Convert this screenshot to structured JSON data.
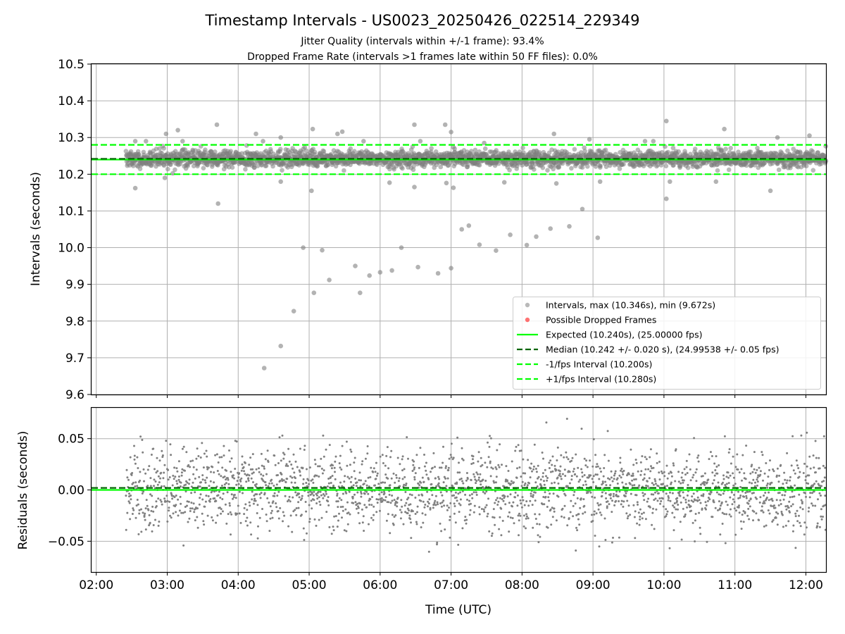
{
  "chart_data": {
    "type": "scatter",
    "title": "Timestamp Intervals - US0023_20250426_022514_229349",
    "subtitle_lines": [
      "Jitter Quality (intervals within +/-1 frame): 93.4%",
      "Dropped Frame Rate (intervals >1 frames late within 50 FF files): 0.0%"
    ],
    "xlabel": "Time (UTC)",
    "x_ticks": [
      "02:00",
      "03:00",
      "04:00",
      "05:00",
      "06:00",
      "07:00",
      "08:00",
      "09:00",
      "10:00",
      "11:00",
      "12:00"
    ],
    "xlim": [
      "01:56",
      "12:17"
    ],
    "grid": true,
    "panels": [
      {
        "name": "intervals",
        "ylabel": "Intervals (seconds)",
        "ylim": [
          9.6,
          10.5
        ],
        "y_ticks": [
          "10.5",
          "10.4",
          "10.3",
          "10.2",
          "10.1",
          "10.0",
          "9.9",
          "9.8",
          "9.7",
          "9.6"
        ],
        "legend_position": "lower right",
        "legend": [
          "Intervals, max (10.346s), min (9.672s)",
          "Possible Dropped Frames",
          "Expected (10.240s), (25.00000 fps)",
          "Median (10.242 +/- 0.020 s), (24.99538 +/- 0.05 fps)",
          "-1/fps Interval (10.200s)",
          "+1/fps Interval (10.280s)"
        ],
        "lines": {
          "expected": 10.24,
          "median": 10.242,
          "minus_one_fps": 10.2,
          "plus_one_fps": 10.28
        },
        "dense_band": {
          "x_start": "02:25",
          "x_end": "12:17",
          "center": 10.242,
          "spread": 0.02
        },
        "outliers": [
          {
            "x": "02:33",
            "y": 10.162
          },
          {
            "x": "02:33",
            "y": 10.29
          },
          {
            "x": "02:42",
            "y": 10.29
          },
          {
            "x": "02:59",
            "y": 10.31
          },
          {
            "x": "02:58",
            "y": 10.19
          },
          {
            "x": "03:09",
            "y": 10.32
          },
          {
            "x": "03:13",
            "y": 10.29
          },
          {
            "x": "03:42",
            "y": 10.335
          },
          {
            "x": "03:43",
            "y": 10.12
          },
          {
            "x": "04:15",
            "y": 10.31
          },
          {
            "x": "04:21",
            "y": 10.29
          },
          {
            "x": "04:22",
            "y": 9.672
          },
          {
            "x": "04:36",
            "y": 9.732
          },
          {
            "x": "04:36",
            "y": 10.3
          },
          {
            "x": "04:36",
            "y": 10.18
          },
          {
            "x": "04:47",
            "y": 9.827
          },
          {
            "x": "04:55",
            "y": 10.0
          },
          {
            "x": "05:03",
            "y": 10.323
          },
          {
            "x": "05:02",
            "y": 10.155
          },
          {
            "x": "05:04",
            "y": 9.877
          },
          {
            "x": "05:11",
            "y": 9.993
          },
          {
            "x": "05:17",
            "y": 9.912
          },
          {
            "x": "05:24",
            "y": 10.31
          },
          {
            "x": "05:28",
            "y": 10.316
          },
          {
            "x": "05:39",
            "y": 9.95
          },
          {
            "x": "05:43",
            "y": 9.877
          },
          {
            "x": "05:46",
            "y": 10.29
          },
          {
            "x": "05:51",
            "y": 9.924
          },
          {
            "x": "06:00",
            "y": 9.933
          },
          {
            "x": "06:08",
            "y": 10.177
          },
          {
            "x": "06:10",
            "y": 9.938
          },
          {
            "x": "06:18",
            "y": 10.0
          },
          {
            "x": "06:29",
            "y": 10.335
          },
          {
            "x": "06:29",
            "y": 10.165
          },
          {
            "x": "06:32",
            "y": 9.947
          },
          {
            "x": "06:34",
            "y": 10.29
          },
          {
            "x": "06:49",
            "y": 9.93
          },
          {
            "x": "06:55",
            "y": 10.335
          },
          {
            "x": "06:56",
            "y": 10.176
          },
          {
            "x": "07:00",
            "y": 9.944
          },
          {
            "x": "07:00",
            "y": 10.315
          },
          {
            "x": "07:02",
            "y": 10.163
          },
          {
            "x": "07:09",
            "y": 10.05
          },
          {
            "x": "07:15",
            "y": 10.06
          },
          {
            "x": "07:24",
            "y": 10.008
          },
          {
            "x": "07:28",
            "y": 10.285
          },
          {
            "x": "07:38",
            "y": 9.992
          },
          {
            "x": "07:45",
            "y": 10.178
          },
          {
            "x": "07:50",
            "y": 10.035
          },
          {
            "x": "08:04",
            "y": 10.007
          },
          {
            "x": "08:12",
            "y": 10.03
          },
          {
            "x": "08:24",
            "y": 10.052
          },
          {
            "x": "08:27",
            "y": 10.31
          },
          {
            "x": "08:29",
            "y": 10.175
          },
          {
            "x": "08:40",
            "y": 10.058
          },
          {
            "x": "08:51",
            "y": 10.105
          },
          {
            "x": "08:57",
            "y": 10.295
          },
          {
            "x": "09:04",
            "y": 10.027
          },
          {
            "x": "09:06",
            "y": 10.18
          },
          {
            "x": "09:44",
            "y": 10.29
          },
          {
            "x": "09:51",
            "y": 10.29
          },
          {
            "x": "10:02",
            "y": 10.345
          },
          {
            "x": "10:02",
            "y": 10.133
          },
          {
            "x": "10:05",
            "y": 10.18
          },
          {
            "x": "10:44",
            "y": 10.18
          },
          {
            "x": "10:51",
            "y": 10.323
          },
          {
            "x": "11:30",
            "y": 10.155
          },
          {
            "x": "11:36",
            "y": 10.3
          },
          {
            "x": "12:03",
            "y": 10.305
          }
        ]
      },
      {
        "name": "residuals",
        "ylabel": "Residuals (seconds)",
        "ylim": [
          -0.08,
          0.08
        ],
        "y_ticks": [
          "0.05",
          "0.00",
          "−0.05"
        ],
        "lines": {
          "zero": 0.0,
          "median_offset": 0.002
        },
        "scatter_band": {
          "x_start": "02:25",
          "x_end": "12:17",
          "center": 0.0,
          "spread": 0.02
        }
      }
    ],
    "colors": {
      "points": "#808080",
      "dropped": "#ff0000",
      "expected": "#00ff00",
      "median": "#006400",
      "bounds": "#00ff00",
      "grid": "#b0b0b0"
    }
  }
}
